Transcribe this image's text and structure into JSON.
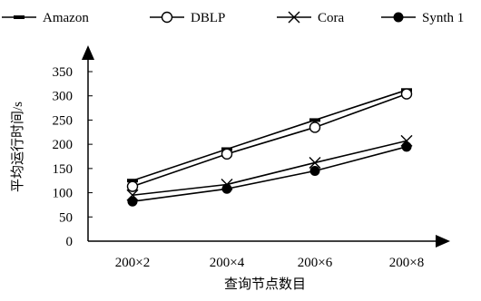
{
  "chart_data": {
    "type": "line",
    "categories": [
      "200×2",
      "200×4",
      "200×6",
      "200×8"
    ],
    "xlabel": "查询节点数目",
    "ylabel": "平均运行时间/s",
    "ylim": [
      0,
      350
    ],
    "yticks": [
      "0",
      "50",
      "100",
      "150",
      "200",
      "250",
      "300",
      "350"
    ],
    "grid": false,
    "legend_position": "top",
    "series": [
      {
        "name": "Amazon",
        "marker": "dash",
        "values": [
          125,
          190,
          250,
          312
        ]
      },
      {
        "name": "DBLP",
        "marker": "open-circle",
        "values": [
          113,
          180,
          235,
          304
        ]
      },
      {
        "name": "Cora",
        "marker": "cross",
        "values": [
          95,
          117,
          162,
          207
        ]
      },
      {
        "name": "Synth 1",
        "marker": "filled-circle",
        "values": [
          82,
          108,
          145,
          195
        ]
      }
    ],
    "colors": {
      "line": "#000000",
      "background": "#ffffff"
    }
  }
}
